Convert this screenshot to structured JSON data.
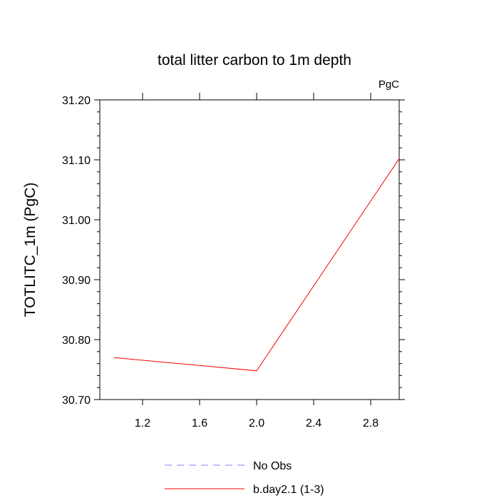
{
  "chart_data": {
    "type": "line",
    "title": "total litter carbon to 1m depth",
    "units_label": "PgC",
    "xlabel": "",
    "ylabel": "TOTLITC_1m  (PgC)",
    "xlim": [
      0.9,
      3.0
    ],
    "ylim": [
      30.7,
      31.2
    ],
    "x_ticks": [
      1.2,
      1.6,
      2.0,
      2.4,
      2.8
    ],
    "x_tick_labels": [
      "1.2",
      "1.6",
      "2.0",
      "2.4",
      "2.8"
    ],
    "y_ticks": [
      30.7,
      30.8,
      30.9,
      31.0,
      31.1,
      31.2
    ],
    "y_tick_labels": [
      "30.70",
      "30.80",
      "30.90",
      "31.00",
      "31.10",
      "31.20"
    ],
    "grid": false,
    "legend_position": "bottom",
    "series": [
      {
        "name": "No Obs",
        "color": "#8080ff",
        "dash": "dashed",
        "x": [],
        "y": []
      },
      {
        "name": "b.day2.1 (1-3)",
        "color": "#ff0000",
        "dash": "solid",
        "x": [
          1,
          2,
          3
        ],
        "y": [
          30.77,
          30.748,
          31.102
        ]
      }
    ]
  }
}
